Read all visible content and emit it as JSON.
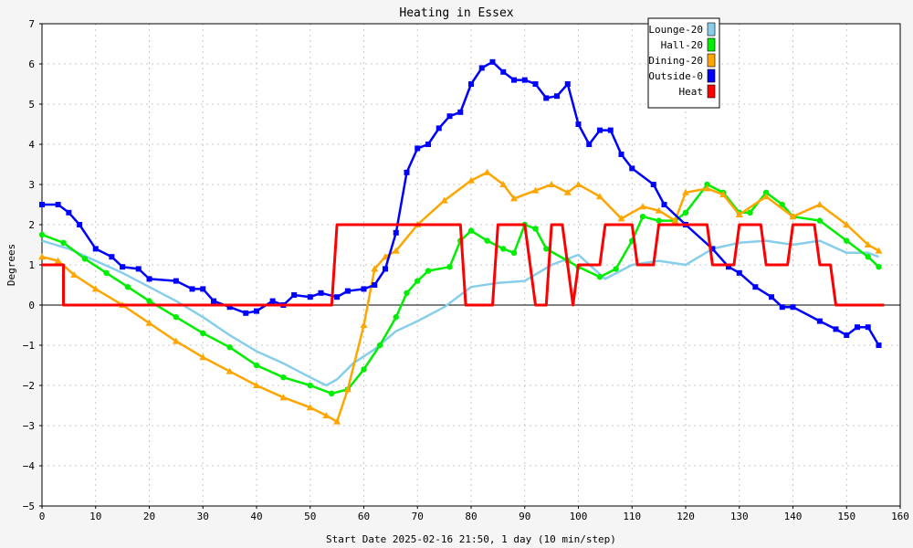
{
  "chart_data": {
    "type": "line",
    "title": "Heating in Essex",
    "xlabel": "Start Date 2025-02-16 21:50, 1 day (10 min/step)",
    "ylabel": "Degrees",
    "xlim": [
      0,
      160
    ],
    "ylim": [
      -5,
      7
    ],
    "x_ticks": [
      0,
      10,
      20,
      30,
      40,
      50,
      60,
      70,
      80,
      90,
      100,
      110,
      120,
      130,
      140,
      150,
      160
    ],
    "y_ticks": [
      -5,
      -4,
      -3,
      -2,
      -1,
      0,
      1,
      2,
      3,
      4,
      5,
      6,
      7
    ],
    "grid": true,
    "zero_line": true,
    "legend_position": "top-right",
    "series": [
      {
        "name": "Lounge-20",
        "color": "#87ceeb",
        "marker": "none",
        "points": [
          [
            0,
            1.6
          ],
          [
            5,
            1.4
          ],
          [
            10,
            1.1
          ],
          [
            15,
            0.8
          ],
          [
            20,
            0.45
          ],
          [
            25,
            0.1
          ],
          [
            30,
            -0.3
          ],
          [
            35,
            -0.75
          ],
          [
            40,
            -1.15
          ],
          [
            45,
            -1.45
          ],
          [
            50,
            -1.8
          ],
          [
            53,
            -2.0
          ],
          [
            55,
            -1.85
          ],
          [
            58,
            -1.45
          ],
          [
            62,
            -1.1
          ],
          [
            66,
            -0.65
          ],
          [
            70,
            -0.4
          ],
          [
            75,
            -0.05
          ],
          [
            80,
            0.45
          ],
          [
            85,
            0.55
          ],
          [
            90,
            0.6
          ],
          [
            95,
            1.0
          ],
          [
            100,
            1.25
          ],
          [
            105,
            0.65
          ],
          [
            110,
            1.0
          ],
          [
            115,
            1.1
          ],
          [
            120,
            1.0
          ],
          [
            125,
            1.4
          ],
          [
            130,
            1.55
          ],
          [
            135,
            1.6
          ],
          [
            140,
            1.5
          ],
          [
            145,
            1.6
          ],
          [
            150,
            1.3
          ],
          [
            154,
            1.3
          ],
          [
            156,
            1.2
          ]
        ]
      },
      {
        "name": "Hall-20",
        "color": "#00ee00",
        "marker": "circle",
        "points": [
          [
            0,
            1.75
          ],
          [
            4,
            1.55
          ],
          [
            8,
            1.15
          ],
          [
            12,
            0.8
          ],
          [
            16,
            0.45
          ],
          [
            20,
            0.1
          ],
          [
            25,
            -0.3
          ],
          [
            30,
            -0.7
          ],
          [
            35,
            -1.05
          ],
          [
            40,
            -1.5
          ],
          [
            45,
            -1.8
          ],
          [
            50,
            -2.0
          ],
          [
            54,
            -2.2
          ],
          [
            57,
            -2.1
          ],
          [
            60,
            -1.6
          ],
          [
            63,
            -1.0
          ],
          [
            66,
            -0.3
          ],
          [
            68,
            0.3
          ],
          [
            70,
            0.6
          ],
          [
            72,
            0.85
          ],
          [
            76,
            0.95
          ],
          [
            78,
            1.6
          ],
          [
            80,
            1.85
          ],
          [
            83,
            1.6
          ],
          [
            86,
            1.4
          ],
          [
            88,
            1.3
          ],
          [
            90,
            2.0
          ],
          [
            92,
            1.9
          ],
          [
            94,
            1.4
          ],
          [
            98,
            1.1
          ],
          [
            100,
            0.95
          ],
          [
            104,
            0.7
          ],
          [
            107,
            0.9
          ],
          [
            110,
            1.6
          ],
          [
            112,
            2.2
          ],
          [
            115,
            2.1
          ],
          [
            118,
            2.1
          ],
          [
            120,
            2.3
          ],
          [
            124,
            3.0
          ],
          [
            127,
            2.8
          ],
          [
            130,
            2.3
          ],
          [
            132,
            2.3
          ],
          [
            135,
            2.8
          ],
          [
            138,
            2.5
          ],
          [
            140,
            2.2
          ],
          [
            145,
            2.1
          ],
          [
            150,
            1.6
          ],
          [
            154,
            1.2
          ],
          [
            156,
            0.95
          ]
        ]
      },
      {
        "name": "Dining-20",
        "color": "#ffa500",
        "marker": "triangle",
        "points": [
          [
            0,
            1.2
          ],
          [
            3,
            1.1
          ],
          [
            6,
            0.75
          ],
          [
            10,
            0.4
          ],
          [
            15,
            0.0
          ],
          [
            20,
            -0.45
          ],
          [
            25,
            -0.9
          ],
          [
            30,
            -1.3
          ],
          [
            35,
            -1.65
          ],
          [
            40,
            -2.0
          ],
          [
            45,
            -2.3
          ],
          [
            50,
            -2.55
          ],
          [
            53,
            -2.75
          ],
          [
            55,
            -2.9
          ],
          [
            57,
            -2.1
          ],
          [
            60,
            -0.5
          ],
          [
            62,
            0.9
          ],
          [
            64,
            1.2
          ],
          [
            66,
            1.35
          ],
          [
            70,
            2.0
          ],
          [
            75,
            2.6
          ],
          [
            80,
            3.1
          ],
          [
            83,
            3.3
          ],
          [
            86,
            3.0
          ],
          [
            88,
            2.65
          ],
          [
            92,
            2.85
          ],
          [
            95,
            3.0
          ],
          [
            98,
            2.8
          ],
          [
            100,
            3.0
          ],
          [
            104,
            2.7
          ],
          [
            108,
            2.15
          ],
          [
            112,
            2.45
          ],
          [
            115,
            2.35
          ],
          [
            118,
            2.1
          ],
          [
            120,
            2.8
          ],
          [
            124,
            2.9
          ],
          [
            127,
            2.75
          ],
          [
            130,
            2.25
          ],
          [
            135,
            2.7
          ],
          [
            140,
            2.2
          ],
          [
            145,
            2.5
          ],
          [
            150,
            2.0
          ],
          [
            154,
            1.5
          ],
          [
            156,
            1.35
          ]
        ]
      },
      {
        "name": "Outside-0",
        "color": "#0000ff",
        "marker": "square",
        "points": [
          [
            0,
            2.5
          ],
          [
            3,
            2.5
          ],
          [
            5,
            2.3
          ],
          [
            7,
            2.0
          ],
          [
            10,
            1.4
          ],
          [
            13,
            1.2
          ],
          [
            15,
            0.95
          ],
          [
            18,
            0.9
          ],
          [
            20,
            0.65
          ],
          [
            25,
            0.6
          ],
          [
            28,
            0.4
          ],
          [
            30,
            0.4
          ],
          [
            32,
            0.1
          ],
          [
            35,
            -0.05
          ],
          [
            38,
            -0.2
          ],
          [
            40,
            -0.15
          ],
          [
            43,
            0.1
          ],
          [
            45,
            0.0
          ],
          [
            47,
            0.25
          ],
          [
            50,
            0.2
          ],
          [
            52,
            0.3
          ],
          [
            55,
            0.2
          ],
          [
            57,
            0.35
          ],
          [
            60,
            0.4
          ],
          [
            62,
            0.5
          ],
          [
            64,
            0.9
          ],
          [
            66,
            1.8
          ],
          [
            68,
            3.3
          ],
          [
            70,
            3.9
          ],
          [
            72,
            4.0
          ],
          [
            74,
            4.4
          ],
          [
            76,
            4.7
          ],
          [
            78,
            4.8
          ],
          [
            80,
            5.5
          ],
          [
            82,
            5.9
          ],
          [
            84,
            6.05
          ],
          [
            86,
            5.8
          ],
          [
            88,
            5.6
          ],
          [
            90,
            5.6
          ],
          [
            92,
            5.5
          ],
          [
            94,
            5.15
          ],
          [
            96,
            5.2
          ],
          [
            98,
            5.5
          ],
          [
            100,
            4.5
          ],
          [
            102,
            4.0
          ],
          [
            104,
            4.35
          ],
          [
            106,
            4.35
          ],
          [
            108,
            3.75
          ],
          [
            110,
            3.4
          ],
          [
            114,
            3.0
          ],
          [
            116,
            2.5
          ],
          [
            120,
            2.0
          ],
          [
            125,
            1.4
          ],
          [
            128,
            0.95
          ],
          [
            130,
            0.8
          ],
          [
            133,
            0.45
          ],
          [
            136,
            0.2
          ],
          [
            138,
            -0.05
          ],
          [
            140,
            -0.05
          ],
          [
            145,
            -0.4
          ],
          [
            148,
            -0.6
          ],
          [
            150,
            -0.75
          ],
          [
            152,
            -0.55
          ],
          [
            154,
            -0.55
          ],
          [
            156,
            -1.0
          ]
        ]
      },
      {
        "name": "Heat",
        "color": "#ff0000",
        "marker": "none",
        "points": [
          [
            0,
            1
          ],
          [
            4,
            1
          ],
          [
            4,
            0
          ],
          [
            54,
            0
          ],
          [
            55,
            2
          ],
          [
            78,
            2
          ],
          [
            79,
            0
          ],
          [
            84,
            0
          ],
          [
            85,
            2
          ],
          [
            90,
            2
          ],
          [
            92,
            0
          ],
          [
            94,
            0
          ],
          [
            95,
            2
          ],
          [
            97,
            2
          ],
          [
            99,
            0
          ],
          [
            99,
            0
          ],
          [
            100,
            1
          ],
          [
            104,
            1
          ],
          [
            105,
            2
          ],
          [
            110,
            2
          ],
          [
            111,
            1
          ],
          [
            114,
            1
          ],
          [
            115,
            2
          ],
          [
            124,
            2
          ],
          [
            125,
            1
          ],
          [
            129,
            1
          ],
          [
            130,
            2
          ],
          [
            134,
            2
          ],
          [
            135,
            1
          ],
          [
            139,
            1
          ],
          [
            140,
            2
          ],
          [
            144,
            2
          ],
          [
            145,
            1
          ],
          [
            147,
            1
          ],
          [
            148,
            0
          ],
          [
            157,
            0
          ]
        ]
      }
    ]
  },
  "legend": {
    "items": [
      {
        "label": "Lounge-20",
        "color": "#87ceeb"
      },
      {
        "label": "Hall-20",
        "color": "#00ee00"
      },
      {
        "label": "Dining-20",
        "color": "#ffa500"
      },
      {
        "label": "Outside-0",
        "color": "#0000ff"
      },
      {
        "label": "Heat",
        "color": "#ff0000"
      }
    ]
  }
}
